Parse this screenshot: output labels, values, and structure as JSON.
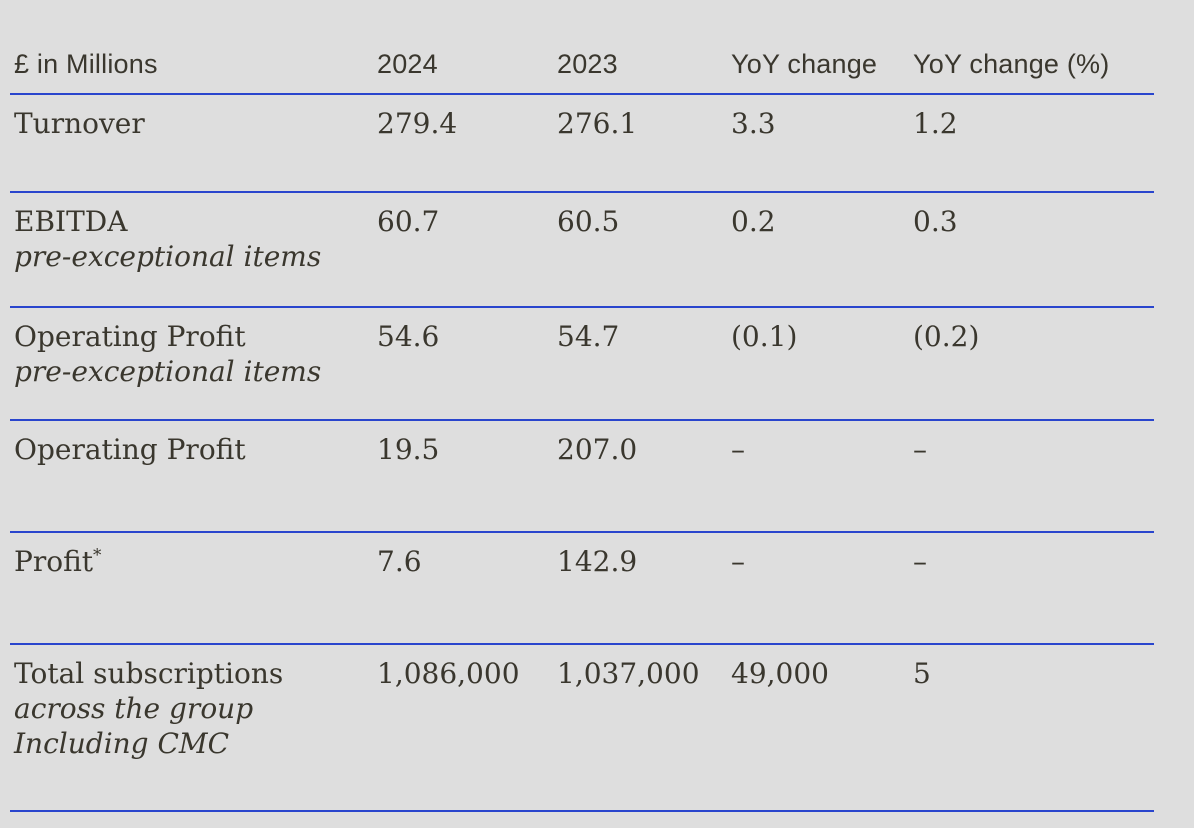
{
  "theme": {
    "background_color": "#dedede",
    "rule_color": "#2945cd",
    "text_color": "#3a372e"
  },
  "table": {
    "header": {
      "unit_label": "£ in Millions",
      "col_2024": "2024",
      "col_2023": "2023",
      "col_yoy": "YoY change",
      "col_yoy_pct": "YoY change (%)"
    },
    "rows": [
      {
        "label": "Turnover",
        "note": "",
        "sub1": "",
        "sub2": "",
        "v2024": "279.4",
        "v2023": "276.1",
        "yoy": "3.3",
        "yoy_pct": "1.2"
      },
      {
        "label": "EBITDA",
        "note": "",
        "sub1": "pre-exceptional items",
        "sub2": "",
        "v2024": "60.7",
        "v2023": "60.5",
        "yoy": "0.2",
        "yoy_pct": "0.3"
      },
      {
        "label": "Operating Profit",
        "note": "",
        "sub1": "pre-exceptional items",
        "sub2": "",
        "v2024": "54.6",
        "v2023": "54.7",
        "yoy": "(0.1)",
        "yoy_pct": "(0.2)"
      },
      {
        "label": "Operating Profit",
        "note": "",
        "sub1": "",
        "sub2": "",
        "v2024": "19.5",
        "v2023": "207.0",
        "yoy": "–",
        "yoy_pct": "–"
      },
      {
        "label": "Profit",
        "note": "*",
        "sub1": "",
        "sub2": "",
        "v2024": "7.6",
        "v2023": "142.9",
        "yoy": "–",
        "yoy_pct": "–"
      },
      {
        "label": "Total subscriptions",
        "note": "",
        "sub1": "across the group",
        "sub2": "Including CMC",
        "v2024": "1,086,000",
        "v2023": "1,037,000",
        "yoy": "49,000",
        "yoy_pct": "5"
      }
    ]
  }
}
